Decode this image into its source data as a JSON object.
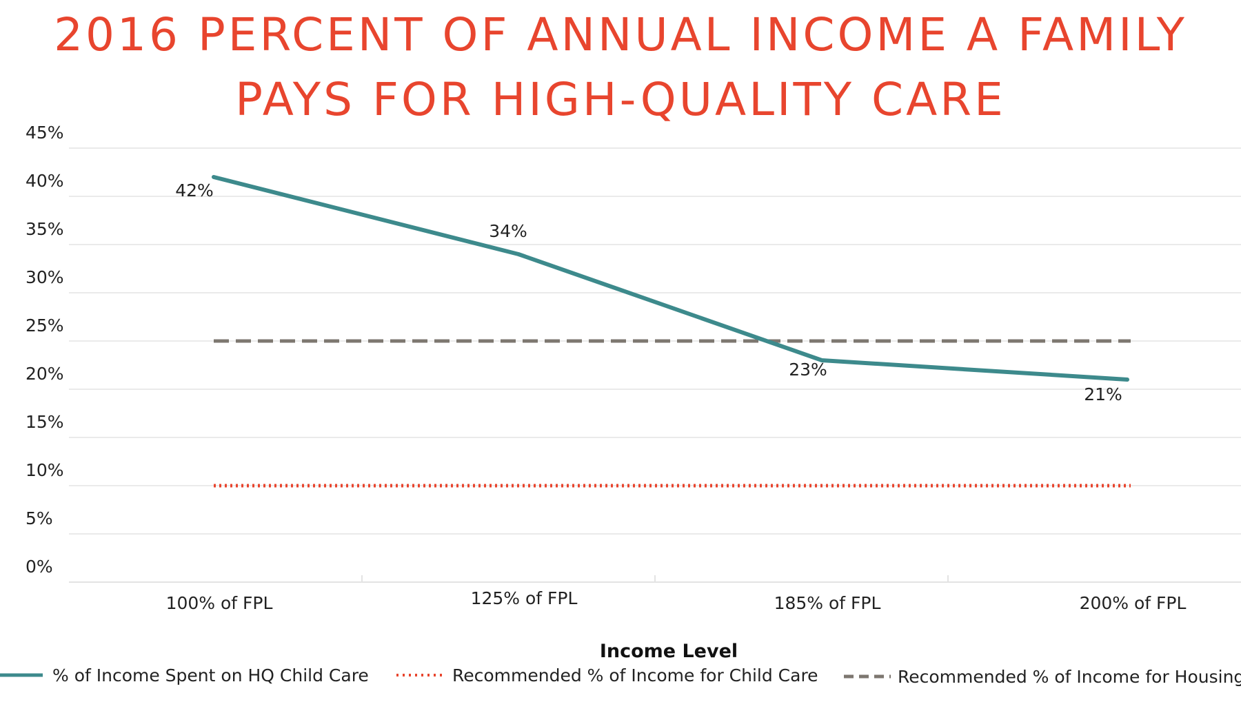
{
  "chart_data": {
    "type": "line",
    "title": "2016 PERCENT OF ANNUAL INCOME A FAMILY PAYS FOR HIGH-QUALITY CARE",
    "title_lines": [
      "2016 PERCENT OF ANNUAL INCOME A FAMILY",
      "PAYS FOR HIGH-QUALITY CARE"
    ],
    "xlabel": "Income Level",
    "ylabel": "",
    "categories": [
      "100% of FPL",
      "125% of FPL",
      "185% of FPL",
      "200% of FPL"
    ],
    "y_ticks": [
      "0%",
      "5%",
      "10%",
      "15%",
      "20%",
      "25%",
      "30%",
      "35%",
      "40%",
      "45%"
    ],
    "ylim": [
      0,
      45
    ],
    "grid": true,
    "legend_position": "bottom",
    "series": [
      {
        "name": "% of Income Spent on HQ Child Care",
        "values": [
          42,
          34,
          23,
          21
        ],
        "labels": [
          "42%",
          "34%",
          "23%",
          "21%"
        ],
        "color": "#3d8a8c",
        "style": "solid"
      },
      {
        "name": "Recommended % of Income for Child Care",
        "values": [
          10,
          10,
          10,
          10
        ],
        "color": "#e8452e",
        "style": "dotted"
      },
      {
        "name": "Recommended % of Income for Housing",
        "values": [
          25,
          25,
          25,
          25
        ],
        "color": "#7d7770",
        "style": "dashed"
      }
    ],
    "colors": {
      "title": "#e8452e",
      "grid": "#e3e3e3",
      "text": "#222222"
    }
  }
}
